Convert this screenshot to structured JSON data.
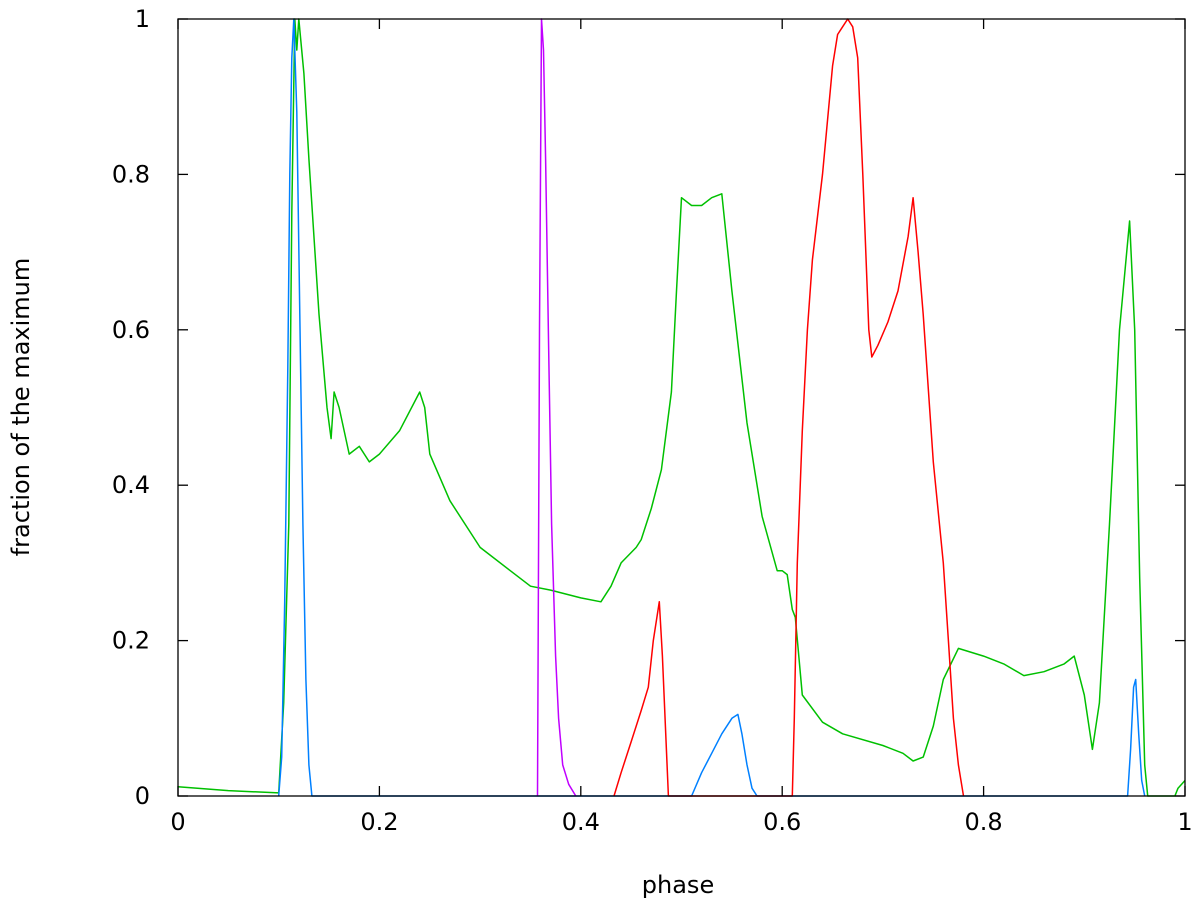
{
  "chart_data": {
    "type": "line",
    "title": "",
    "xlabel": "phase",
    "ylabel": "fraction of the maximum",
    "xlim": [
      0,
      1
    ],
    "ylim": [
      0,
      1
    ],
    "grid": false,
    "legend": "none",
    "x_ticks": [
      0,
      0.2,
      0.4,
      0.6,
      0.8,
      1
    ],
    "x_tick_labels": [
      "0",
      "0.2",
      "0.4",
      "0.6",
      "0.8",
      "1"
    ],
    "y_ticks": [
      0,
      0.2,
      0.4,
      0.6,
      0.8,
      1
    ],
    "y_tick_labels": [
      "0",
      "0.2",
      "0.4",
      "0.6",
      "0.8",
      "1"
    ],
    "series": [
      {
        "color": "#00c000",
        "points": [
          [
            0,
            0.012
          ],
          [
            0.05,
            0.007
          ],
          [
            0.1,
            0.004
          ],
          [
            0.105,
            0.12
          ],
          [
            0.11,
            0.35
          ],
          [
            0.113,
            0.75
          ],
          [
            0.116,
            1.0
          ],
          [
            0.118,
            0.96
          ],
          [
            0.12,
            1.0
          ],
          [
            0.125,
            0.93
          ],
          [
            0.13,
            0.82
          ],
          [
            0.14,
            0.62
          ],
          [
            0.148,
            0.5
          ],
          [
            0.152,
            0.46
          ],
          [
            0.155,
            0.52
          ],
          [
            0.16,
            0.5
          ],
          [
            0.17,
            0.44
          ],
          [
            0.18,
            0.45
          ],
          [
            0.19,
            0.43
          ],
          [
            0.2,
            0.44
          ],
          [
            0.22,
            0.47
          ],
          [
            0.24,
            0.52
          ],
          [
            0.245,
            0.5
          ],
          [
            0.25,
            0.44
          ],
          [
            0.27,
            0.38
          ],
          [
            0.3,
            0.32
          ],
          [
            0.33,
            0.29
          ],
          [
            0.35,
            0.27
          ],
          [
            0.37,
            0.265
          ],
          [
            0.4,
            0.255
          ],
          [
            0.42,
            0.25
          ],
          [
            0.43,
            0.27
          ],
          [
            0.44,
            0.3
          ],
          [
            0.455,
            0.32
          ],
          [
            0.46,
            0.33
          ],
          [
            0.47,
            0.37
          ],
          [
            0.48,
            0.42
          ],
          [
            0.49,
            0.52
          ],
          [
            0.495,
            0.65
          ],
          [
            0.5,
            0.77
          ],
          [
            0.51,
            0.76
          ],
          [
            0.52,
            0.76
          ],
          [
            0.53,
            0.77
          ],
          [
            0.54,
            0.775
          ],
          [
            0.55,
            0.65
          ],
          [
            0.565,
            0.48
          ],
          [
            0.58,
            0.36
          ],
          [
            0.595,
            0.29
          ],
          [
            0.6,
            0.29
          ],
          [
            0.605,
            0.285
          ],
          [
            0.61,
            0.24
          ],
          [
            0.613,
            0.23
          ],
          [
            0.62,
            0.13
          ],
          [
            0.64,
            0.095
          ],
          [
            0.66,
            0.08
          ],
          [
            0.7,
            0.065
          ],
          [
            0.72,
            0.055
          ],
          [
            0.73,
            0.045
          ],
          [
            0.74,
            0.05
          ],
          [
            0.75,
            0.09
          ],
          [
            0.76,
            0.15
          ],
          [
            0.775,
            0.19
          ],
          [
            0.8,
            0.18
          ],
          [
            0.82,
            0.17
          ],
          [
            0.84,
            0.155
          ],
          [
            0.86,
            0.16
          ],
          [
            0.88,
            0.17
          ],
          [
            0.89,
            0.18
          ],
          [
            0.9,
            0.13
          ],
          [
            0.908,
            0.06
          ],
          [
            0.915,
            0.12
          ],
          [
            0.925,
            0.35
          ],
          [
            0.935,
            0.6
          ],
          [
            0.945,
            0.74
          ],
          [
            0.95,
            0.6
          ],
          [
            0.955,
            0.28
          ],
          [
            0.96,
            0.04
          ],
          [
            0.963,
            0.0
          ],
          [
            0.99,
            0.0
          ],
          [
            0.993,
            0.01
          ],
          [
            1.0,
            0.02
          ]
        ]
      },
      {
        "color": "#0080ff",
        "points": [
          [
            0.1,
            0.0
          ],
          [
            0.103,
            0.05
          ],
          [
            0.106,
            0.25
          ],
          [
            0.109,
            0.55
          ],
          [
            0.111,
            0.8
          ],
          [
            0.113,
            0.95
          ],
          [
            0.115,
            1.0
          ],
          [
            0.118,
            0.88
          ],
          [
            0.121,
            0.62
          ],
          [
            0.124,
            0.35
          ],
          [
            0.127,
            0.15
          ],
          [
            0.13,
            0.04
          ],
          [
            0.133,
            0.0
          ],
          [
            0.51,
            0.0
          ],
          [
            0.52,
            0.03
          ],
          [
            0.53,
            0.055
          ],
          [
            0.54,
            0.08
          ],
          [
            0.55,
            0.1
          ],
          [
            0.556,
            0.105
          ],
          [
            0.56,
            0.08
          ],
          [
            0.565,
            0.04
          ],
          [
            0.57,
            0.01
          ],
          [
            0.575,
            0.0
          ],
          [
            0.943,
            0.0
          ],
          [
            0.946,
            0.06
          ],
          [
            0.949,
            0.14
          ],
          [
            0.951,
            0.15
          ],
          [
            0.954,
            0.08
          ],
          [
            0.957,
            0.02
          ],
          [
            0.96,
            0.0
          ]
        ]
      },
      {
        "color": "#c000ff",
        "points": [
          [
            0.357,
            0.0
          ],
          [
            0.359,
            0.6
          ],
          [
            0.361,
            1.0
          ],
          [
            0.363,
            0.96
          ],
          [
            0.365,
            0.82
          ],
          [
            0.368,
            0.58
          ],
          [
            0.371,
            0.35
          ],
          [
            0.375,
            0.18
          ],
          [
            0.378,
            0.1
          ],
          [
            0.382,
            0.04
          ],
          [
            0.388,
            0.015
          ],
          [
            0.395,
            0.0
          ]
        ]
      },
      {
        "color": "#ff0000",
        "points": [
          [
            0.433,
            0.0
          ],
          [
            0.44,
            0.03
          ],
          [
            0.45,
            0.07
          ],
          [
            0.46,
            0.11
          ],
          [
            0.467,
            0.14
          ],
          [
            0.472,
            0.2
          ],
          [
            0.478,
            0.25
          ],
          [
            0.481,
            0.18
          ],
          [
            0.484,
            0.09
          ],
          [
            0.487,
            0.0
          ],
          [
            0.61,
            0.0
          ],
          [
            0.612,
            0.1
          ],
          [
            0.615,
            0.3
          ],
          [
            0.62,
            0.47
          ],
          [
            0.625,
            0.6
          ],
          [
            0.63,
            0.69
          ],
          [
            0.64,
            0.8
          ],
          [
            0.65,
            0.94
          ],
          [
            0.655,
            0.98
          ],
          [
            0.66,
            0.99
          ],
          [
            0.665,
            1.0
          ],
          [
            0.67,
            0.99
          ],
          [
            0.675,
            0.95
          ],
          [
            0.68,
            0.8
          ],
          [
            0.686,
            0.6
          ],
          [
            0.689,
            0.565
          ],
          [
            0.695,
            0.58
          ],
          [
            0.705,
            0.61
          ],
          [
            0.715,
            0.65
          ],
          [
            0.725,
            0.72
          ],
          [
            0.73,
            0.77
          ],
          [
            0.735,
            0.7
          ],
          [
            0.74,
            0.62
          ],
          [
            0.75,
            0.43
          ],
          [
            0.76,
            0.3
          ],
          [
            0.765,
            0.2
          ],
          [
            0.77,
            0.1
          ],
          [
            0.775,
            0.04
          ],
          [
            0.78,
            0.0
          ]
        ]
      }
    ]
  }
}
